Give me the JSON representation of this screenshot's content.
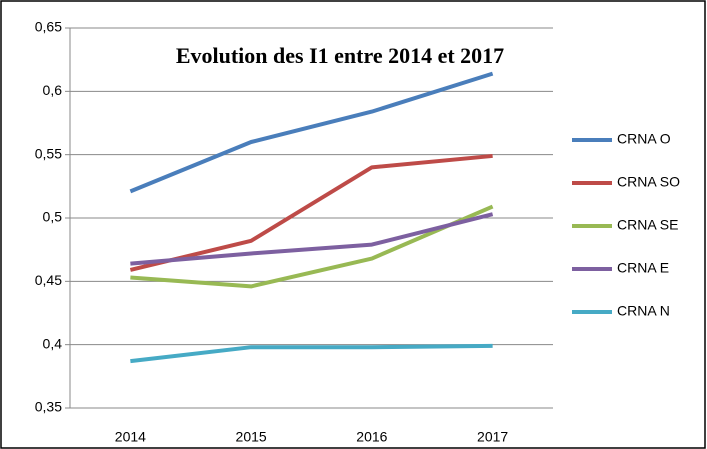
{
  "chart_data": {
    "type": "line",
    "title": "Evolution des I1 entre 2014 et 2017",
    "categories": [
      "2014",
      "2015",
      "2016",
      "2017"
    ],
    "series": [
      {
        "name": "CRNA O",
        "color": "#4a7ebb",
        "values": [
          0.521,
          0.56,
          0.584,
          0.614
        ]
      },
      {
        "name": "CRNA SO",
        "color": "#be4b48",
        "values": [
          0.459,
          0.482,
          0.54,
          0.549
        ]
      },
      {
        "name": "CRNA SE",
        "color": "#98b954",
        "values": [
          0.453,
          0.446,
          0.468,
          0.509
        ]
      },
      {
        "name": "CRNA E",
        "color": "#7d60a0",
        "values": [
          0.464,
          0.472,
          0.479,
          0.503
        ]
      },
      {
        "name": "CRNA N",
        "color": "#46aac5",
        "values": [
          0.387,
          0.398,
          0.398,
          0.399
        ]
      }
    ],
    "ylim": [
      0.35,
      0.65
    ],
    "yticks": [
      {
        "value": 0.35,
        "label": "0,35"
      },
      {
        "value": 0.4,
        "label": "0,4"
      },
      {
        "value": 0.45,
        "label": "0,45"
      },
      {
        "value": 0.5,
        "label": "0,5"
      },
      {
        "value": 0.55,
        "label": "0,55"
      },
      {
        "value": 0.6,
        "label": "0,6"
      },
      {
        "value": 0.65,
        "label": "0,65"
      }
    ],
    "grid": true,
    "legend": "right"
  }
}
